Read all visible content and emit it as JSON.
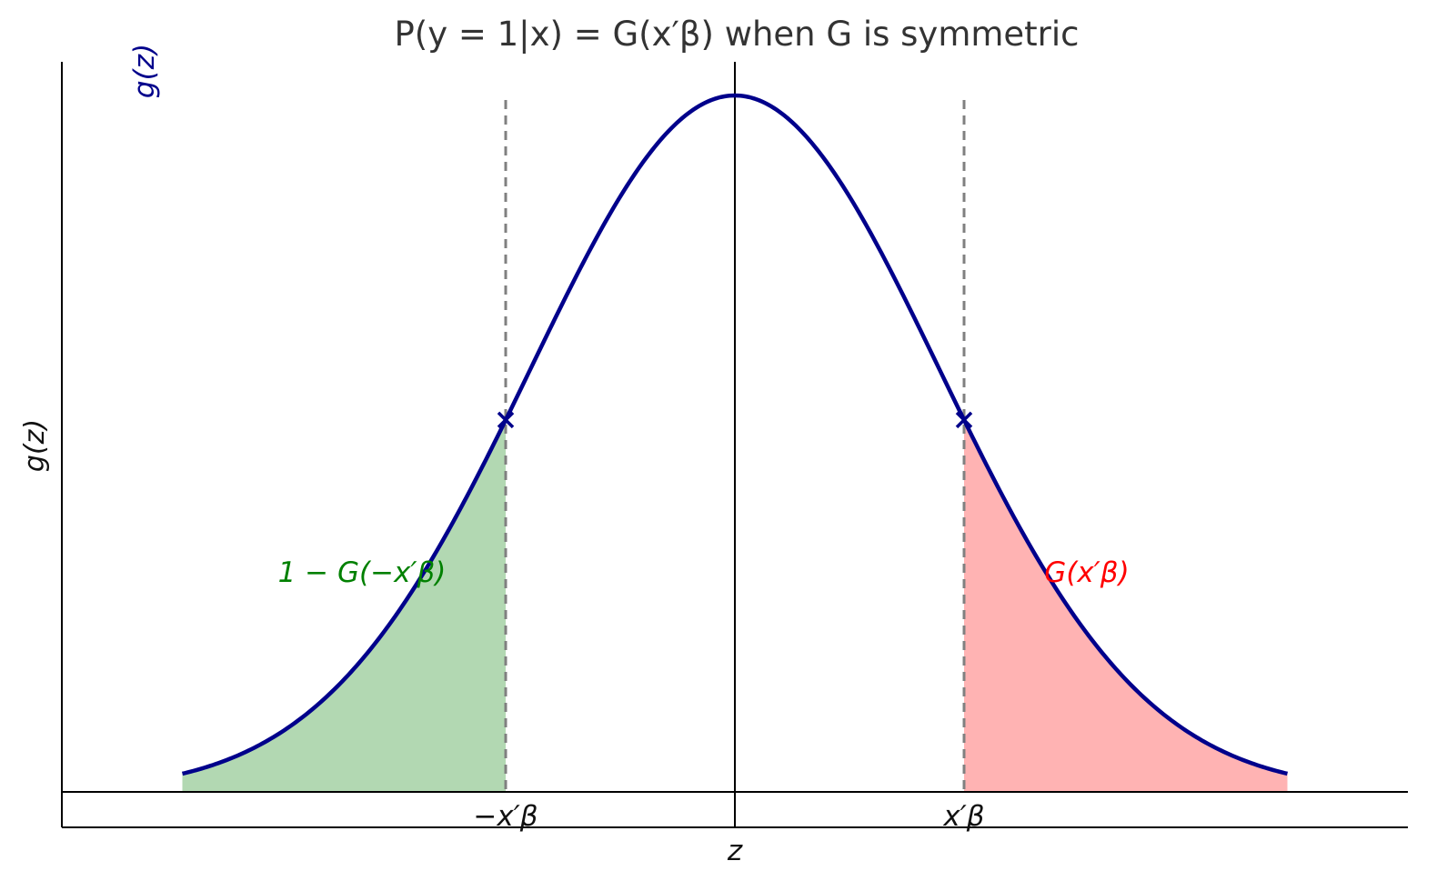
{
  "chart_data": {
    "type": "area",
    "title": "P(y = 1|x) = G(x′β) when G is symmetric",
    "xlabel": "z",
    "ylabel": "g(z)",
    "curve_label": "g(z)",
    "distribution": "standard normal density",
    "xlim": [
      -3.0,
      3.0
    ],
    "ylim": [
      -0.02,
      0.42
    ],
    "x_beta": 1.12,
    "ticks": [
      {
        "x": -1.12,
        "label": "−x′β"
      },
      {
        "x": 1.12,
        "label": "x′β"
      }
    ],
    "shaded_regions": [
      {
        "from": -2.7,
        "to": -1.12,
        "color": "#b2d8b2",
        "label": "1 − G(−x′β)",
        "label_color": "#008000"
      },
      {
        "from": 1.12,
        "to": 2.7,
        "color": "#ffb3b3",
        "label": "G(x′β)",
        "label_color": "#ff0000"
      }
    ],
    "markers": [
      {
        "x": -1.12,
        "symbol": "x"
      },
      {
        "x": 1.12,
        "symbol": "x"
      }
    ],
    "curve_range": [
      -2.7,
      2.7
    ],
    "grid": false,
    "colors": {
      "curve": "#00008b",
      "dashed_lines": "#808080",
      "axes": "#000000"
    }
  }
}
